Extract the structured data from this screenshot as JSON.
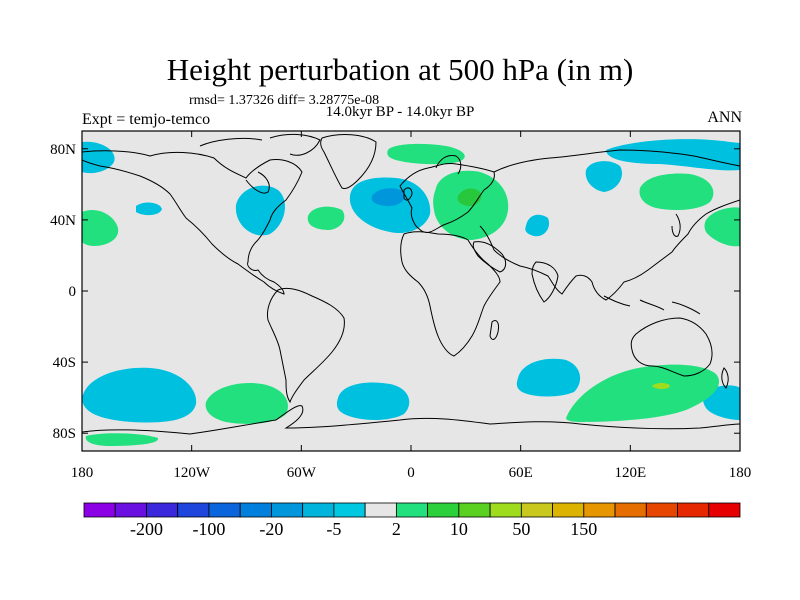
{
  "title": "Height perturbation at 500 hPa (in m)",
  "stats": "rmsd= 1.37326 diff= 3.28775e-08",
  "period": "14.0kyr BP - 14.0kyr BP",
  "expt": "Expt = temjo-temco",
  "season": "ANN",
  "map": {
    "projection": "cylindrical equidistant",
    "lon_range": [
      -180,
      180
    ],
    "lat_range": [
      -90,
      90
    ],
    "lat_ticks": [
      {
        "value": 80,
        "label": "80N"
      },
      {
        "value": 40,
        "label": "40N"
      },
      {
        "value": 0,
        "label": "0"
      },
      {
        "value": -40,
        "label": "40S"
      },
      {
        "value": -80,
        "label": "80S"
      }
    ],
    "lon_ticks": [
      {
        "value": -180,
        "label": "180"
      },
      {
        "value": -120,
        "label": "120W"
      },
      {
        "value": -60,
        "label": "60W"
      },
      {
        "value": 0,
        "label": "0"
      },
      {
        "value": 60,
        "label": "60E"
      },
      {
        "value": 120,
        "label": "120E"
      },
      {
        "value": 180,
        "label": "180"
      }
    ],
    "background_color": "#e6e6e6",
    "negative_fill": "#00c0e0",
    "negative_core_fill": "#0096dc",
    "positive_fill": "#22e07e",
    "positive_core_fill": "#28c83c"
  },
  "colorbar": {
    "colors": [
      "#8c00e6",
      "#6a10e0",
      "#3c28dc",
      "#1e46dc",
      "#0a64dc",
      "#0080dc",
      "#0096dc",
      "#00b4dc",
      "#00c8e0",
      "#e6e6e6",
      "#22e07e",
      "#2bd03a",
      "#5ad020",
      "#a0dc1e",
      "#c8c81e",
      "#dcb400",
      "#e69600",
      "#e66e00",
      "#e64600",
      "#e62800",
      "#e60000"
    ],
    "labels": [
      "-200",
      "-100",
      "-20",
      "-5",
      "2",
      "10",
      "50",
      "150"
    ]
  }
}
